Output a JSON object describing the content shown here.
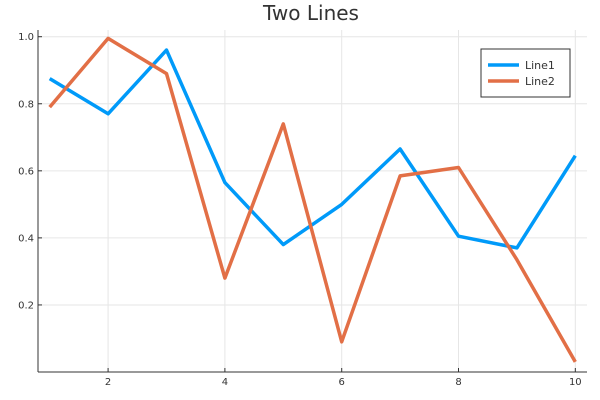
{
  "chart_data": {
    "type": "line",
    "title": "Two Lines",
    "xlabel": "",
    "ylabel": "",
    "x": [
      1,
      2,
      3,
      4,
      5,
      6,
      7,
      8,
      9,
      10
    ],
    "xlim": [
      0.8,
      10.2
    ],
    "ylim": [
      0.0,
      1.02
    ],
    "xticks": [
      2,
      4,
      6,
      8,
      10
    ],
    "xtick_labels": [
      "2",
      "4",
      "6",
      "8",
      "10"
    ],
    "yticks": [
      0.2,
      0.4,
      0.6,
      0.8,
      1.0
    ],
    "ytick_labels": [
      "0.2",
      "0.4",
      "0.6",
      "0.8",
      "1.0"
    ],
    "grid": true,
    "legend_position": "top-right",
    "series": [
      {
        "name": "Line1",
        "color": "#009af9",
        "values": [
          0.875,
          0.77,
          0.96,
          0.565,
          0.38,
          0.5,
          0.665,
          0.405,
          0.37,
          0.645
        ]
      },
      {
        "name": "Line2",
        "color": "#e26f46",
        "values": [
          0.79,
          0.995,
          0.89,
          0.28,
          0.74,
          0.09,
          0.585,
          0.61,
          0.335,
          0.03
        ]
      }
    ]
  }
}
